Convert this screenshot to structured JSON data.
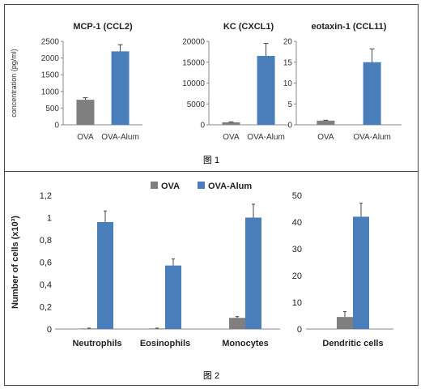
{
  "figure1": {
    "caption": "图 1",
    "ylabel": "concentration (pg/ml)",
    "colors": {
      "OVA": "#7f7f7f",
      "OVA-Alum": "#4a7ebb"
    },
    "chart_data": [
      {
        "type": "bar",
        "title": "MCP-1 (CCL2)",
        "categories": [
          "OVA",
          "OVA-Alum"
        ],
        "values": [
          750,
          2200
        ],
        "errors": [
          60,
          200
        ],
        "ylim": [
          0,
          2500
        ],
        "yticks": [
          0,
          500,
          1000,
          1500,
          2000,
          2500
        ]
      },
      {
        "type": "bar",
        "title": "KC (CXCL1)",
        "categories": [
          "OVA",
          "OVA-Alum"
        ],
        "values": [
          600,
          16500
        ],
        "errors": [
          100,
          3000
        ],
        "ylim": [
          0,
          20000
        ],
        "yticks": [
          0,
          5000,
          10000,
          15000,
          20000
        ]
      },
      {
        "type": "bar",
        "title": "eotaxin-1 (CCL11)",
        "categories": [
          "OVA",
          "OVA-Alum"
        ],
        "values": [
          1.0,
          15.0
        ],
        "errors": [
          0.1,
          3.2
        ],
        "ylim": [
          0,
          20
        ],
        "yticks": [
          0,
          5,
          10,
          15,
          20
        ]
      }
    ]
  },
  "figure2": {
    "caption": "图 2",
    "legend": [
      {
        "name": "OVA",
        "color": "#7f7f7f"
      },
      {
        "name": "OVA-Alum",
        "color": "#4a7ebb"
      }
    ],
    "chart_data": [
      {
        "type": "bar",
        "ylabel": "Number of cells (x10³)",
        "categories": [
          "Neutrophils",
          "Eosinophils",
          "Monocytes"
        ],
        "yticks": [
          "0",
          "0,2",
          "0,4",
          "0,6",
          "0,8",
          "1",
          "1,2"
        ],
        "ylim": [
          0,
          1.2
        ],
        "series": [
          {
            "name": "OVA",
            "values": [
              0.005,
              0.005,
              0.1
            ],
            "errors": [
              0.003,
              0.003,
              0.012
            ]
          },
          {
            "name": "OVA-Alum",
            "values": [
              0.96,
              0.57,
              1.0
            ],
            "errors": [
              0.1,
              0.06,
              0.12
            ]
          }
        ]
      },
      {
        "type": "bar",
        "categories": [
          "Dendritic cells"
        ],
        "yticks": [
          "0",
          "10",
          "20",
          "30",
          "40",
          "50"
        ],
        "ylim": [
          0,
          50
        ],
        "series": [
          {
            "name": "OVA",
            "values": [
              4.5
            ],
            "errors": [
              2.0
            ]
          },
          {
            "name": "OVA-Alum",
            "values": [
              42
            ],
            "errors": [
              5.0
            ]
          }
        ]
      }
    ]
  }
}
